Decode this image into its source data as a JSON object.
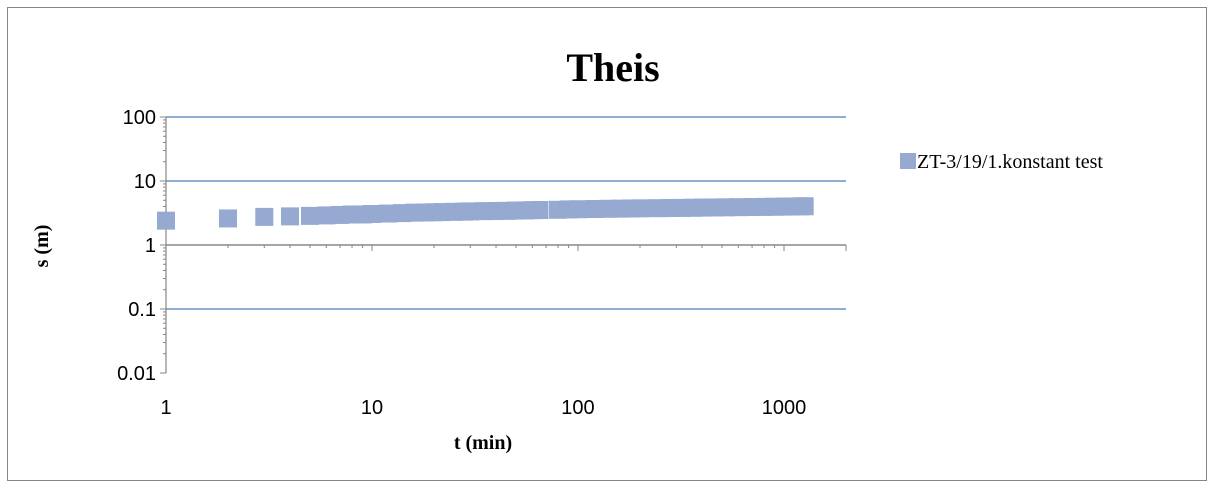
{
  "chart_data": {
    "type": "scatter",
    "title": "Theis",
    "xlabel": "t (min)",
    "ylabel": "s (m)",
    "x_scale": "log",
    "y_scale": "log",
    "xlim": [
      1,
      2000
    ],
    "ylim": [
      0.01,
      100
    ],
    "x_ticks": [
      "1",
      "10",
      "100",
      "1000"
    ],
    "y_ticks": [
      "100",
      "10",
      "1",
      "0.1",
      "0.01"
    ],
    "grid": "horizontal major",
    "legend_position": "right",
    "colors": {
      "series": "#95A9D1",
      "grid": "#4A7EBB",
      "axis": "#868686"
    },
    "series": [
      {
        "name": "ZT-3/19/1.konstant test",
        "points": [
          [
            1,
            2.4
          ],
          [
            2,
            2.6
          ],
          [
            3,
            2.75
          ],
          [
            4,
            2.8
          ],
          [
            5,
            2.85
          ],
          [
            6,
            2.9
          ],
          [
            7,
            2.95
          ],
          [
            8,
            3.0
          ],
          [
            9,
            3.0
          ],
          [
            10,
            3.05
          ],
          [
            12,
            3.1
          ],
          [
            14,
            3.15
          ],
          [
            16,
            3.2
          ],
          [
            18,
            3.22
          ],
          [
            20,
            3.25
          ],
          [
            22,
            3.27
          ],
          [
            25,
            3.3
          ],
          [
            28,
            3.32
          ],
          [
            30,
            3.35
          ],
          [
            35,
            3.38
          ],
          [
            40,
            3.4
          ],
          [
            45,
            3.42
          ],
          [
            50,
            3.45
          ],
          [
            55,
            3.47
          ],
          [
            60,
            3.5
          ],
          [
            65,
            3.52
          ],
          [
            80,
            3.55
          ],
          [
            90,
            3.6
          ],
          [
            100,
            3.62
          ],
          [
            120,
            3.65
          ],
          [
            140,
            3.68
          ],
          [
            160,
            3.7
          ],
          [
            180,
            3.72
          ],
          [
            200,
            3.74
          ],
          [
            240,
            3.76
          ],
          [
            280,
            3.78
          ],
          [
            320,
            3.8
          ],
          [
            360,
            3.82
          ],
          [
            400,
            3.84
          ],
          [
            460,
            3.86
          ],
          [
            520,
            3.88
          ],
          [
            600,
            3.9
          ],
          [
            700,
            3.92
          ],
          [
            800,
            3.94
          ],
          [
            900,
            3.96
          ],
          [
            1000,
            3.98
          ],
          [
            1100,
            4.0
          ],
          [
            1200,
            4.02
          ],
          [
            1260,
            4.03
          ]
        ]
      }
    ]
  }
}
